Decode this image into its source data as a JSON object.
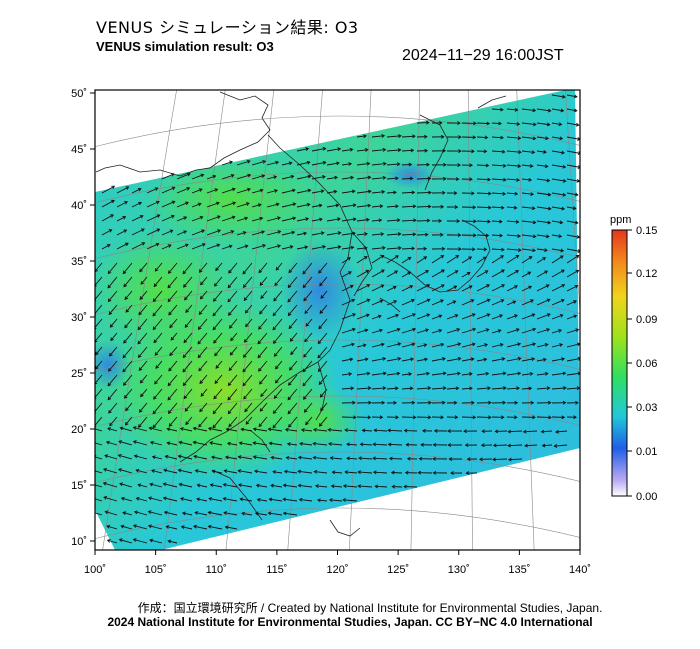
{
  "header": {
    "title_jp": "VENUS シミュレーション結果: O3",
    "title_en": "VENUS simulation result: O3",
    "timestamp": "2024−11−29 16:00JST"
  },
  "map": {
    "lon_range": [
      100,
      140
    ],
    "lat_range": [
      10,
      50
    ],
    "lon_ticks": [
      "100˚",
      "105˚",
      "110˚",
      "115˚",
      "120˚",
      "125˚",
      "130˚",
      "135˚",
      "140˚"
    ],
    "lat_ticks": [
      "50˚",
      "45˚",
      "40˚",
      "35˚",
      "30˚",
      "25˚",
      "20˚",
      "15˚",
      "10˚"
    ],
    "colors": {
      "low": "#2f7fe6",
      "mid": "#27c9d6",
      "high": "#4ee24a",
      "peak": "#8fe020"
    }
  },
  "colorbar": {
    "unit": "ppm",
    "labels": [
      "0.15",
      "0.12",
      "0.09",
      "0.06",
      "0.03",
      "0.01",
      "0.00"
    ],
    "colors": [
      "#e5361e",
      "#f28a1d",
      "#f0d41d",
      "#9fe21c",
      "#2fe060",
      "#22c8d8",
      "#1f5fe6",
      "#b9a9f0",
      "#ffffff"
    ]
  },
  "footer": {
    "credit": "作成：国立環境研究所 / Created by National Institute for Environmental Studies, Japan.",
    "license": "2024 National Institute for Environmental Studies, Japan. CC BY−NC 4.0 International"
  }
}
